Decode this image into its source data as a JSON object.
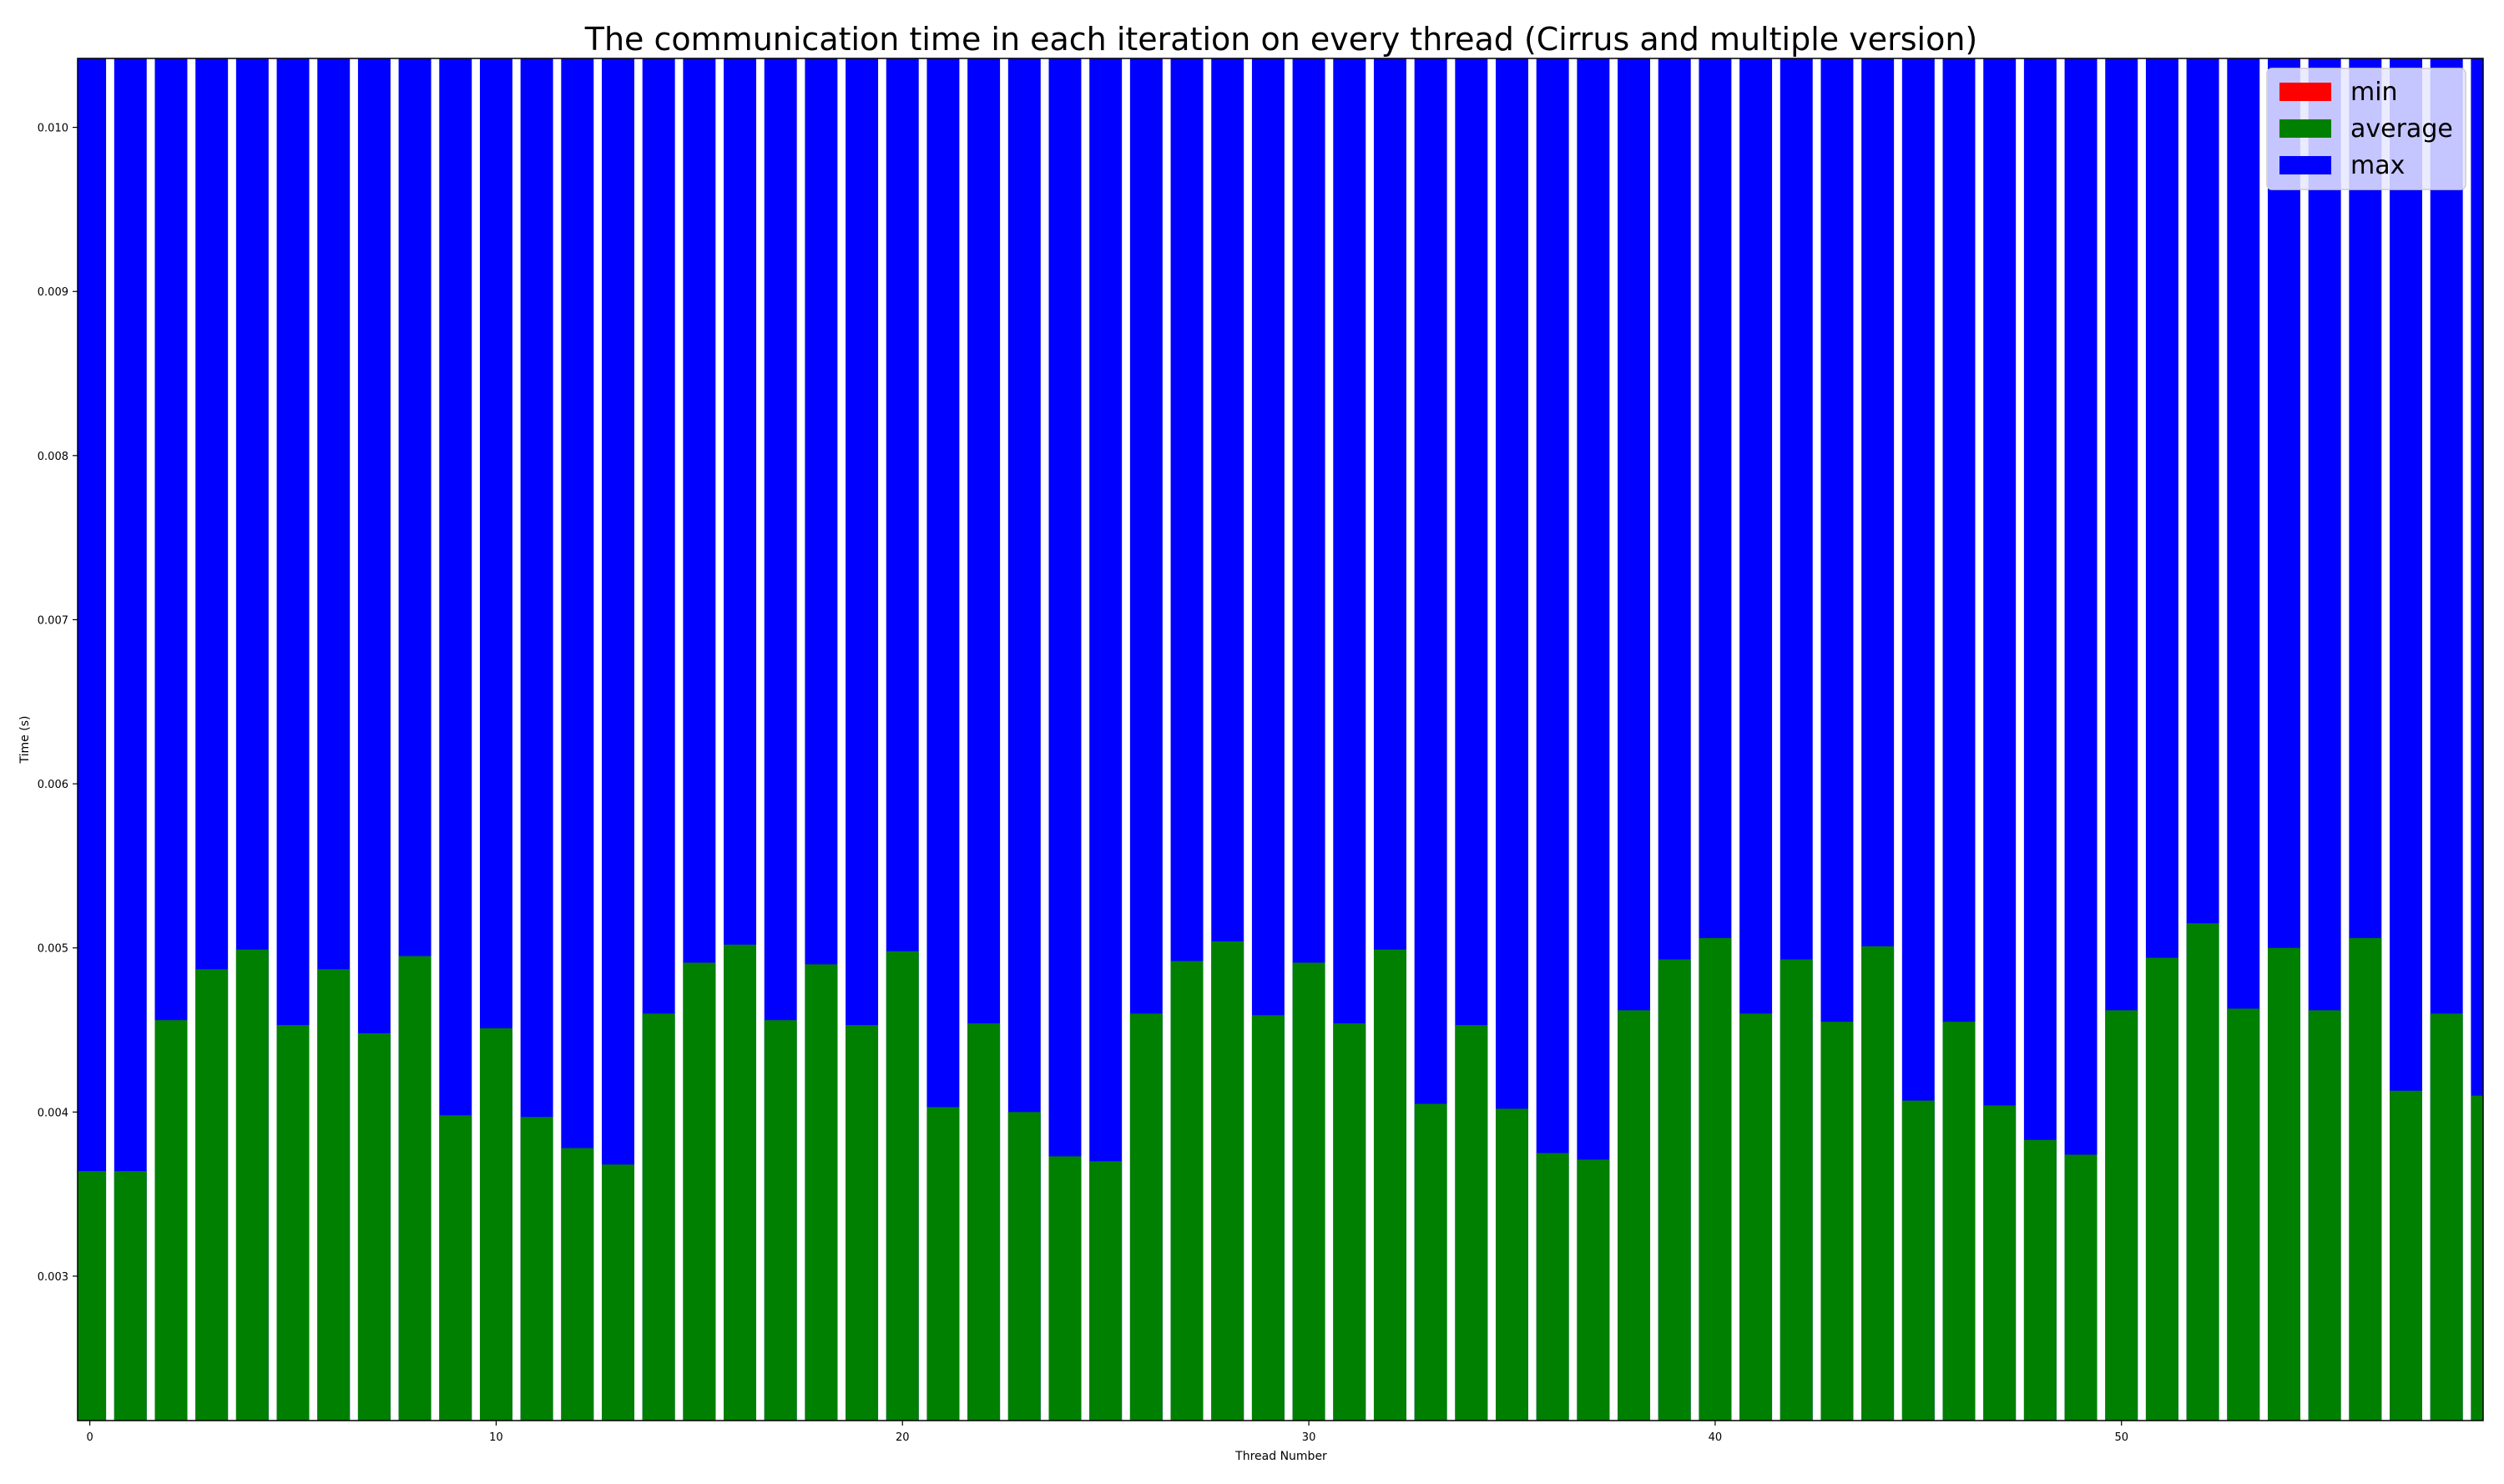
{
  "chart_data": {
    "type": "bar",
    "title": "The communication time in each iteration on every thread (Cirrus and multiple version)",
    "xlabel": "Thread Number",
    "ylabel": "Time (s)",
    "xlim": [
      -0.3,
      58.9
    ],
    "ylim": [
      0.00212,
      0.01042
    ],
    "xticks": [
      0,
      10,
      20,
      30,
      40,
      50
    ],
    "yticks": [
      0.003,
      0.004,
      0.005,
      0.006,
      0.007,
      0.008,
      0.009,
      0.01
    ],
    "ytick_labels": [
      "0.003",
      "0.004",
      "0.005",
      "0.006",
      "0.007",
      "0.008",
      "0.009",
      "0.010"
    ],
    "xtick_labels": [
      "0",
      "10",
      "20",
      "30",
      "40",
      "50"
    ],
    "legend_position": "top-right",
    "categories": [
      0,
      1,
      2,
      3,
      4,
      5,
      6,
      7,
      8,
      9,
      10,
      11,
      12,
      13,
      14,
      15,
      16,
      17,
      18,
      19,
      20,
      21,
      22,
      23,
      24,
      25,
      26,
      27,
      28,
      29,
      30,
      31,
      32,
      33,
      34,
      35,
      36,
      37,
      38,
      39,
      40,
      41,
      42,
      43,
      44,
      45,
      46,
      47,
      48,
      49,
      50,
      51,
      52,
      53,
      54,
      55,
      56,
      57,
      58
    ],
    "series": [
      {
        "name": "min",
        "color": "#ff0000",
        "values": [
          0.0021,
          0.0021,
          0.0021,
          0.0021,
          0.0021,
          0.0021,
          0.0021,
          0.0021,
          0.0021,
          0.0021,
          0.0021,
          0.0021,
          0.0021,
          0.0021,
          0.0021,
          0.0021,
          0.0021,
          0.0021,
          0.0021,
          0.0021,
          0.0021,
          0.0021,
          0.0021,
          0.0021,
          0.0021,
          0.0021,
          0.0021,
          0.0021,
          0.0021,
          0.0021,
          0.0021,
          0.0021,
          0.0021,
          0.0021,
          0.0021,
          0.0021,
          0.0021,
          0.0021,
          0.0021,
          0.0021,
          0.0021,
          0.0021,
          0.0021,
          0.0021,
          0.0021,
          0.0021,
          0.0021,
          0.0021,
          0.0021,
          0.0021,
          0.0021,
          0.0021,
          0.0021,
          0.0021,
          0.0021,
          0.0021,
          0.0021,
          0.0021,
          0.0021
        ]
      },
      {
        "name": "average",
        "color": "#008000",
        "values": [
          0.00364,
          0.00364,
          0.00456,
          0.00487,
          0.00499,
          0.00453,
          0.00487,
          0.00448,
          0.00495,
          0.00398,
          0.00451,
          0.00397,
          0.00378,
          0.00368,
          0.0046,
          0.00491,
          0.00502,
          0.00456,
          0.0049,
          0.00453,
          0.00498,
          0.00403,
          0.00454,
          0.004,
          0.00373,
          0.0037,
          0.0046,
          0.00492,
          0.00504,
          0.00459,
          0.00491,
          0.00454,
          0.00499,
          0.00405,
          0.00453,
          0.00402,
          0.00375,
          0.00371,
          0.00462,
          0.00493,
          0.00506,
          0.0046,
          0.00493,
          0.00455,
          0.00501,
          0.00407,
          0.00455,
          0.00404,
          0.00383,
          0.00374,
          0.00462,
          0.00494,
          0.00515,
          0.00463,
          0.005,
          0.00462,
          0.00506,
          0.00413,
          0.0046
        ]
      },
      {
        "name": "max",
        "color": "#0000ff",
        "values": [
          0.0105,
          0.0105,
          0.0105,
          0.0105,
          0.0105,
          0.0105,
          0.0105,
          0.0105,
          0.0105,
          0.0105,
          0.0105,
          0.0105,
          0.0105,
          0.0105,
          0.0105,
          0.0105,
          0.0105,
          0.0105,
          0.0105,
          0.0105,
          0.0105,
          0.0105,
          0.0105,
          0.0105,
          0.0105,
          0.0105,
          0.0105,
          0.0105,
          0.0105,
          0.0105,
          0.0105,
          0.0105,
          0.0105,
          0.0105,
          0.0105,
          0.0105,
          0.0105,
          0.0105,
          0.0105,
          0.0105,
          0.0105,
          0.0105,
          0.0105,
          0.0105,
          0.0105,
          0.0105,
          0.0105,
          0.0105,
          0.0105,
          0.0105,
          0.0105,
          0.0105,
          0.0105,
          0.0105,
          0.0105,
          0.0105,
          0.0105,
          0.0105,
          0.0105
        ]
      }
    ],
    "extra_partial_bar": {
      "x": 59,
      "average": 0.0041,
      "max": 0.0105
    }
  },
  "legend": {
    "items": [
      {
        "label": "min",
        "color": "#ff0000"
      },
      {
        "label": "average",
        "color": "#008000"
      },
      {
        "label": "max",
        "color": "#0000ff"
      }
    ]
  }
}
